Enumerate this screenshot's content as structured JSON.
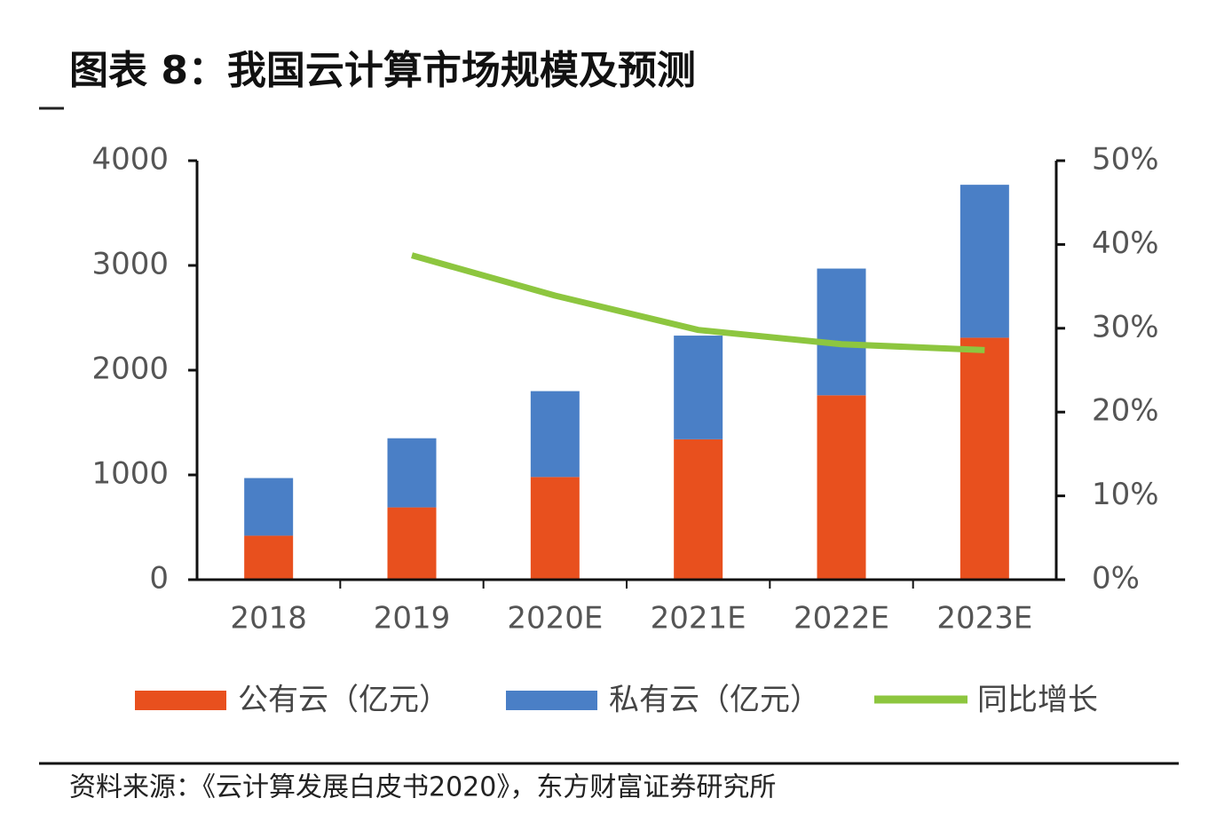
{
  "chart_data": {
    "type": "bar",
    "title": "图表 8：我国云计算市场规模及预测",
    "categories": [
      "2018",
      "2019",
      "2020E",
      "2021E",
      "2022E",
      "2023E"
    ],
    "series": [
      {
        "name": "公有云（亿元）",
        "color": "#e8501e",
        "values": [
          420,
          690,
          980,
          1340,
          1760,
          2310
        ]
      },
      {
        "name": "私有云（亿元）",
        "color": "#4a7fc6",
        "values": [
          550,
          660,
          820,
          990,
          1210,
          1460
        ]
      },
      {
        "name": "同比增长",
        "type": "line",
        "axis": "y2",
        "color": "#8dc63f",
        "values": [
          null,
          38.7,
          33.9,
          29.8,
          28.1,
          27.4
        ]
      }
    ],
    "stacked": true,
    "ylim": [
      0,
      4000
    ],
    "yticks": [
      0,
      1000,
      2000,
      3000,
      4000
    ],
    "y2lim": [
      0,
      50
    ],
    "y2ticks": [
      {
        "value": 0,
        "label": "0%"
      },
      {
        "value": 10,
        "label": "10%"
      },
      {
        "value": 20,
        "label": "20%"
      },
      {
        "value": 30,
        "label": "30%"
      },
      {
        "value": 40,
        "label": "40%"
      },
      {
        "value": 50,
        "label": "50%"
      }
    ],
    "grid": false,
    "legend": "bottom",
    "source": "资料来源：《云计算发展白皮书2020》，东方财富证券研究所"
  }
}
